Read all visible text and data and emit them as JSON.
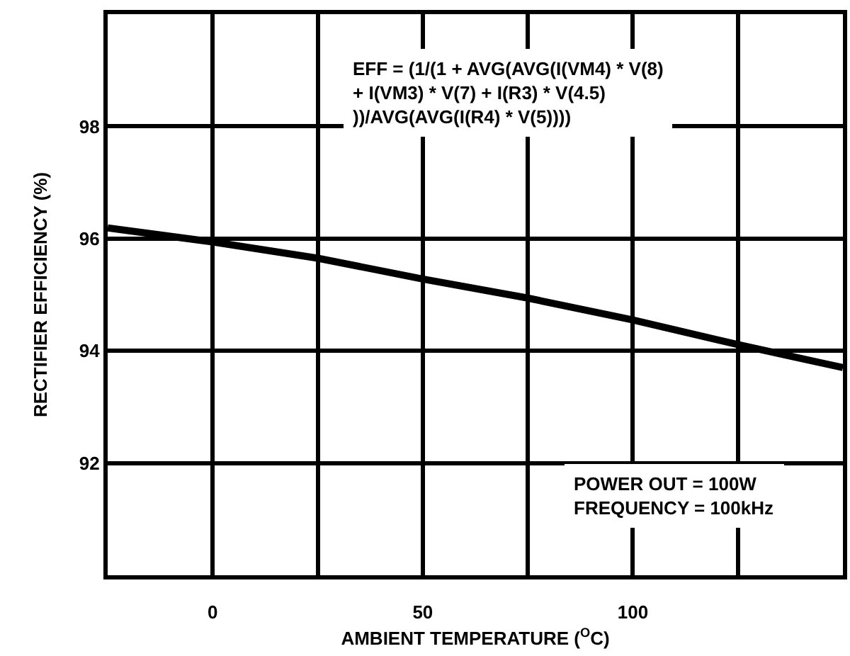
{
  "chart_data": {
    "type": "line",
    "xlabel": "AMBIENT TEMPERATURE ($^{O}$C)",
    "ylabel": "RECTIFIER EFFICIENCY (%)",
    "x": [
      -25,
      0,
      25,
      50,
      75,
      100,
      125,
      150
    ],
    "series": [
      {
        "color": "#000000",
        "values": [
          96.19,
          95.94,
          95.65,
          95.28,
          94.94,
          94.55,
          94.11,
          93.7
        ]
      }
    ],
    "xlim": [
      -25,
      150
    ],
    "ylim": [
      90,
      100
    ],
    "xticks": [
      {
        "value": -25,
        "label": null
      },
      0,
      {
        "value": 25,
        "label": null
      },
      50,
      {
        "value": 75,
        "label": null
      },
      100,
      {
        "value": 125,
        "label": null
      },
      {
        "value": 150,
        "label": null
      }
    ],
    "yticks": [
      92,
      94,
      96,
      98
    ],
    "grid": true,
    "marker": "none",
    "line_style": "solid",
    "annotations": [
      "EFF = (1/(1 + AVG(AVG(I(VM4) * V(8)\n+ I(VM3) * V(7) + I(R3) * V(4.5)\n))/AVG(AVG(I(R4) * V(5))))",
      "POWER OUT = 100W\nFREQUENCY = 100kHz"
    ]
  }
}
